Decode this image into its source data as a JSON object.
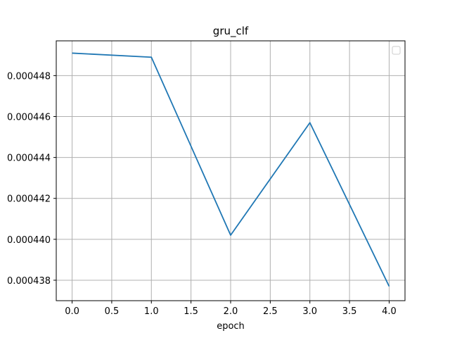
{
  "chart_data": {
    "type": "line",
    "title": "gru_clf",
    "xlabel": "epoch",
    "ylabel": "",
    "x": [
      0,
      1,
      2,
      3,
      4
    ],
    "series": [
      {
        "values": [
          0.0004491,
          0.0004489,
          0.0004402,
          0.0004457,
          0.0004377
        ],
        "color": "#1f77b4"
      }
    ],
    "xlim": [
      -0.2,
      4.2
    ],
    "ylim": [
      0.000437,
      0.0004497
    ],
    "xticks": [
      0,
      0.5,
      1,
      1.5,
      2,
      2.5,
      3,
      3.5,
      4
    ],
    "xtick_labels": [
      "0.0",
      "0.5",
      "1.0",
      "1.5",
      "2.0",
      "2.5",
      "3.0",
      "3.5",
      "4.0"
    ],
    "yticks": [
      0.000438,
      0.00044,
      0.000442,
      0.000444,
      0.000446,
      0.000448
    ],
    "ytick_labels": [
      "0.000438",
      "0.000440",
      "0.000442",
      "0.000444",
      "0.000446",
      "0.000448"
    ],
    "grid": true,
    "legend": {
      "position": "upper right",
      "entries": []
    }
  }
}
